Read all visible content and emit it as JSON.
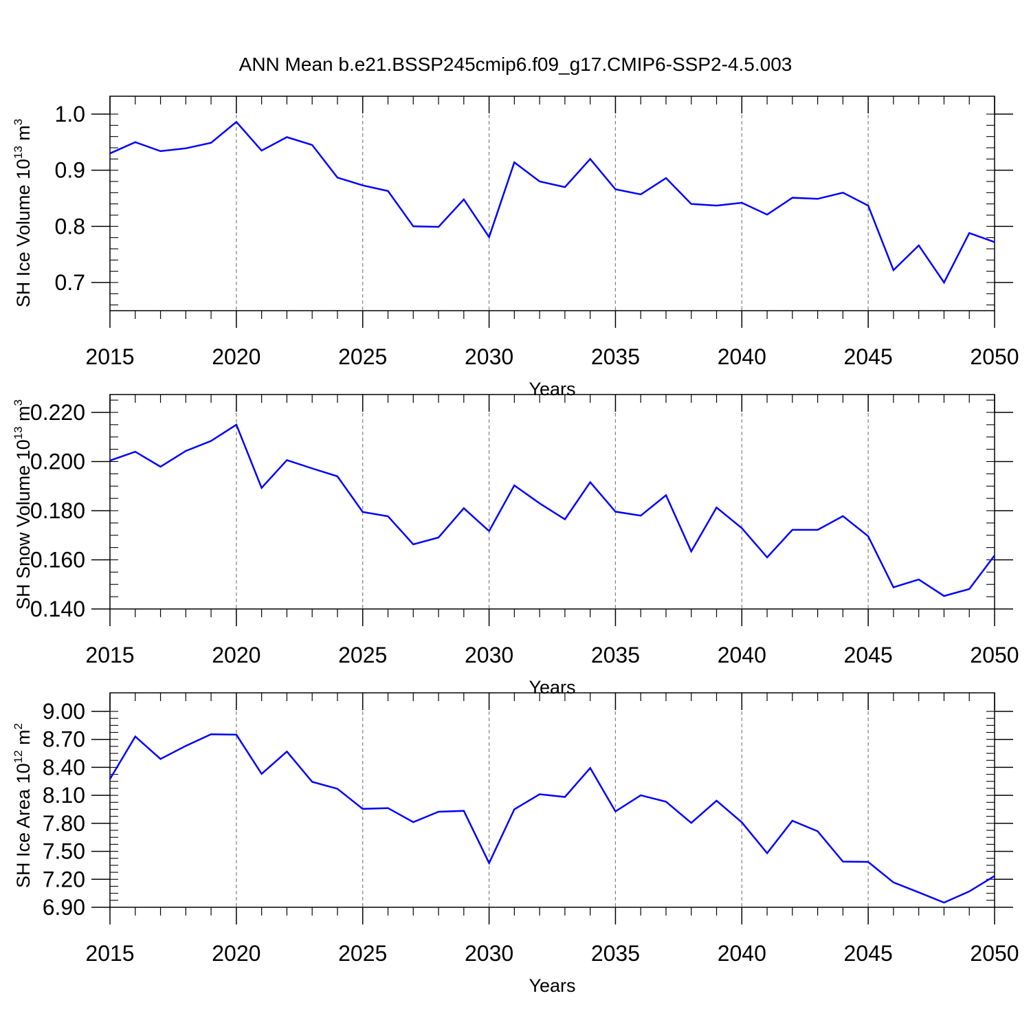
{
  "title": "ANN Mean b.e21.BSSP245cmip6.f09_g17.CMIP6-SSP2-4.5.003",
  "colors": {
    "line": "#0000ff",
    "axis": "#000000",
    "grid": "#808080"
  },
  "chart_data": [
    {
      "type": "line",
      "xlabel": "Years",
      "ylabel_main": "SH Ice Volume 10",
      "ylabel_exp": "13",
      "ylabel_unit": " m",
      "ylabel_unit_exp": "3",
      "xlim": [
        2015,
        2050
      ],
      "ylim": [
        0.65,
        1.0
      ],
      "xticks": [
        2015,
        2020,
        2025,
        2030,
        2035,
        2040,
        2045,
        2050
      ],
      "yticks": [
        "0.7",
        "0.8",
        "0.9",
        "1.0"
      ],
      "ytick_values": [
        0.7,
        0.8,
        0.9,
        1.0
      ],
      "x": [
        2015,
        2016,
        2017,
        2018,
        2019,
        2020,
        2021,
        2022,
        2023,
        2024,
        2025,
        2026,
        2027,
        2028,
        2029,
        2030,
        2031,
        2032,
        2033,
        2034,
        2035,
        2036,
        2037,
        2038,
        2039,
        2040,
        2041,
        2042,
        2043,
        2044,
        2045,
        2046,
        2047,
        2048,
        2049,
        2050
      ],
      "values": [
        0.93,
        0.95,
        0.934,
        0.939,
        0.949,
        0.986,
        0.935,
        0.959,
        0.945,
        0.887,
        0.873,
        0.863,
        0.8,
        0.799,
        0.848,
        0.781,
        0.914,
        0.88,
        0.87,
        0.92,
        0.866,
        0.857,
        0.886,
        0.84,
        0.837,
        0.842,
        0.821,
        0.851,
        0.849,
        0.86,
        0.837,
        0.722,
        0.766,
        0.7,
        0.788,
        0.772
      ]
    },
    {
      "type": "line",
      "xlabel": "Years",
      "ylabel_main": "SH Snow Volume 10",
      "ylabel_exp": "13",
      "ylabel_unit": " m",
      "ylabel_unit_exp": "3",
      "xlim": [
        2015,
        2050
      ],
      "ylim": [
        0.14,
        0.22
      ],
      "xticks": [
        2015,
        2020,
        2025,
        2030,
        2035,
        2040,
        2045,
        2050
      ],
      "yticks": [
        "0.140",
        "0.160",
        "0.180",
        "0.200",
        "0.220"
      ],
      "ytick_values": [
        0.14,
        0.16,
        0.18,
        0.2,
        0.22
      ],
      "x": [
        2015,
        2016,
        2017,
        2018,
        2019,
        2020,
        2021,
        2022,
        2023,
        2024,
        2025,
        2026,
        2027,
        2028,
        2029,
        2030,
        2031,
        2032,
        2033,
        2034,
        2035,
        2036,
        2037,
        2038,
        2039,
        2040,
        2041,
        2042,
        2043,
        2044,
        2045,
        2046,
        2047,
        2048,
        2049,
        2050
      ],
      "values": [
        0.2004,
        0.204,
        0.1979,
        0.2043,
        0.2084,
        0.215,
        0.1893,
        0.2006,
        0.1972,
        0.194,
        0.1795,
        0.1777,
        0.1663,
        0.1691,
        0.181,
        0.1717,
        0.1903,
        0.183,
        0.1765,
        0.1916,
        0.1796,
        0.178,
        0.1863,
        0.1634,
        0.1813,
        0.1729,
        0.161,
        0.1722,
        0.1722,
        0.1778,
        0.1696,
        0.1488,
        0.152,
        0.1453,
        0.1481,
        0.1618
      ]
    },
    {
      "type": "line",
      "xlabel": "Years",
      "ylabel_main": "SH Ice Area 10",
      "ylabel_exp": "12",
      "ylabel_unit": " m",
      "ylabel_unit_exp": "2",
      "xlim": [
        2015,
        2050
      ],
      "ylim": [
        6.9,
        9.0
      ],
      "xticks": [
        2015,
        2020,
        2025,
        2030,
        2035,
        2040,
        2045,
        2050
      ],
      "yticks": [
        "6.90",
        "7.20",
        "7.50",
        "7.80",
        "8.10",
        "8.40",
        "8.70",
        "9.00"
      ],
      "ytick_values": [
        6.9,
        7.2,
        7.5,
        7.8,
        8.1,
        8.4,
        8.7,
        9.0
      ],
      "x": [
        2015,
        2016,
        2017,
        2018,
        2019,
        2020,
        2021,
        2022,
        2023,
        2024,
        2025,
        2026,
        2027,
        2028,
        2029,
        2030,
        2031,
        2032,
        2033,
        2034,
        2035,
        2036,
        2037,
        2038,
        2039,
        2040,
        2041,
        2042,
        2043,
        2044,
        2045,
        2046,
        2047,
        2048,
        2049,
        2050
      ],
      "values": [
        8.275,
        8.73,
        8.49,
        8.63,
        8.755,
        8.75,
        8.33,
        8.57,
        8.245,
        8.17,
        7.955,
        7.963,
        7.813,
        7.924,
        7.934,
        7.374,
        7.95,
        8.112,
        8.083,
        8.393,
        7.928,
        8.1,
        8.032,
        7.805,
        8.043,
        7.811,
        7.48,
        7.828,
        7.715,
        7.39,
        7.386,
        7.167,
        7.06,
        6.95,
        7.07,
        7.236
      ]
    }
  ]
}
